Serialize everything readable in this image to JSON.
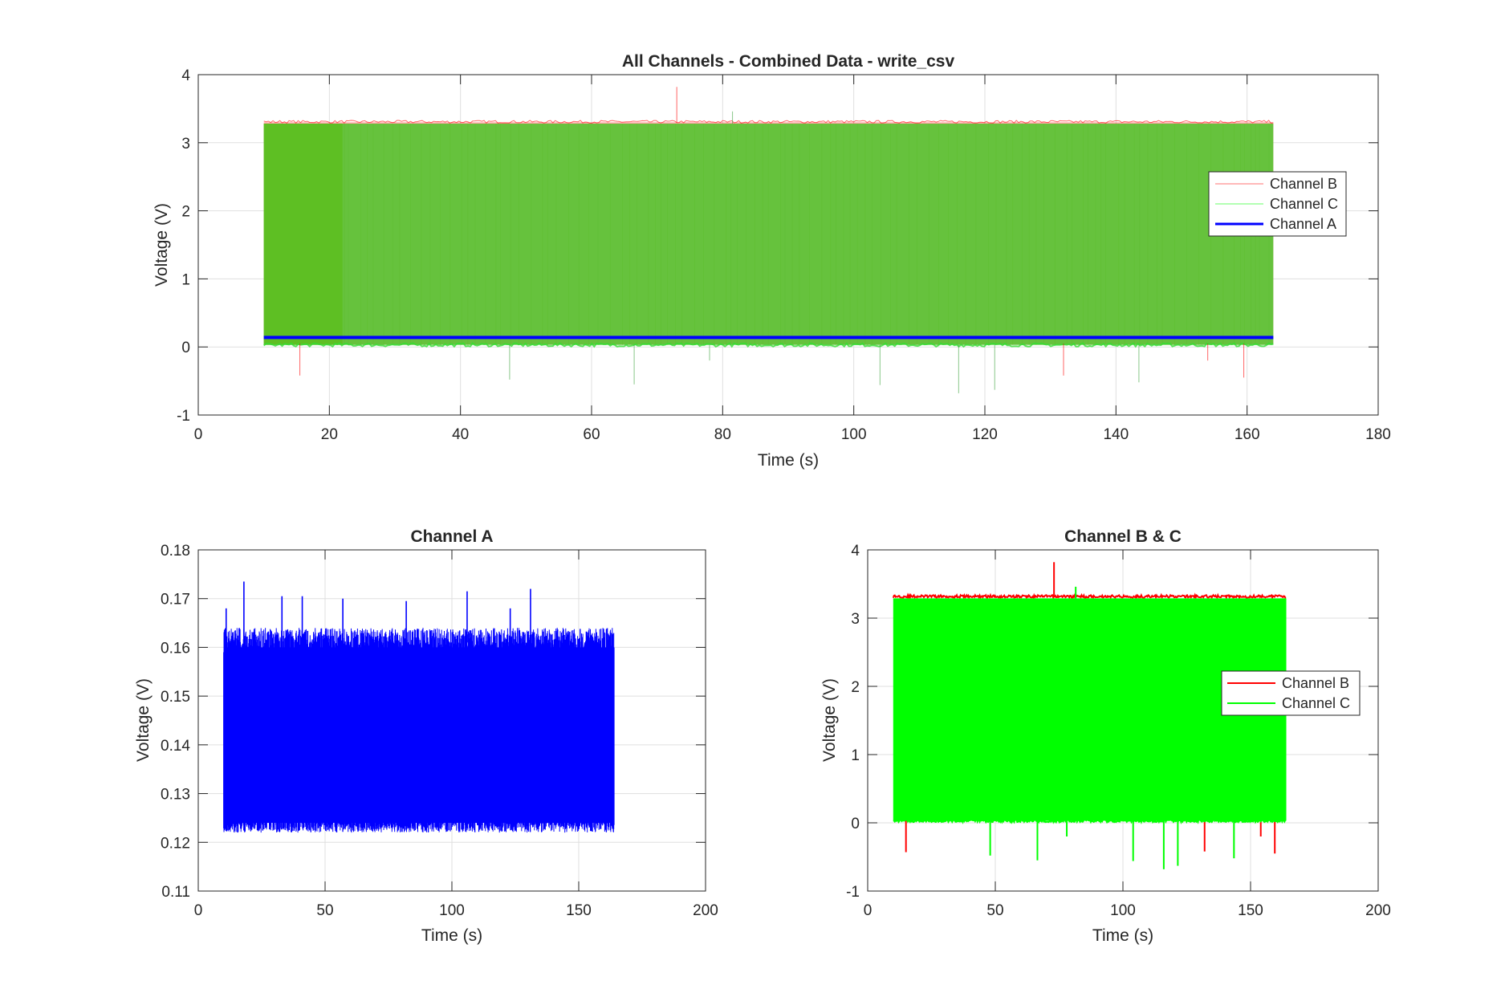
{
  "colors": {
    "channel_a": "#0000ff",
    "channel_b": "#ff0000",
    "channel_c": "#00ff00",
    "channel_c_faded": "#66c23d",
    "grid": "#dfdfdf",
    "axes": "#262626"
  },
  "chart_data": [
    {
      "id": "combined",
      "type": "line",
      "title": "All Channels - Combined Data - write_csv",
      "xlabel": "Time (s)",
      "ylabel": "Voltage (V)",
      "xlim": [
        0,
        180
      ],
      "ylim": [
        -1,
        4
      ],
      "xticks": [
        0,
        20,
        40,
        60,
        80,
        100,
        120,
        140,
        160,
        180
      ],
      "yticks": [
        -1,
        0,
        1,
        2,
        3,
        4
      ],
      "grid": true,
      "legend_position": "right",
      "legend": [
        "Channel B",
        "Channel C",
        "Channel A"
      ],
      "series": [
        {
          "name": "Channel B",
          "t_range": [
            10,
            164
          ],
          "low": 0.05,
          "high": 3.3,
          "spikes": [
            [
              15.5,
              -0.42
            ],
            [
              73,
              3.82
            ],
            [
              132,
              -0.42
            ],
            [
              154,
              -0.2
            ],
            [
              159.5,
              -0.45
            ]
          ]
        },
        {
          "name": "Channel C",
          "t_range": [
            10,
            164
          ],
          "low": 0.03,
          "high": 3.28,
          "spikes": [
            [
              47.5,
              -0.48
            ],
            [
              66.5,
              -0.55
            ],
            [
              78,
              -0.2
            ],
            [
              81.5,
              3.46
            ],
            [
              104,
              -0.56
            ],
            [
              116,
              -0.68
            ],
            [
              121.5,
              -0.63
            ],
            [
              143.5,
              -0.52
            ]
          ]
        },
        {
          "name": "Channel A",
          "t_range": [
            10,
            164
          ],
          "mean": 0.14
        }
      ]
    },
    {
      "id": "channel_a",
      "type": "line",
      "title": "Channel A",
      "xlabel": "Time (s)",
      "ylabel": "Voltage (V)",
      "xlim": [
        0,
        200
      ],
      "ylim": [
        0.11,
        0.18
      ],
      "xticks": [
        0,
        50,
        100,
        150,
        200
      ],
      "yticks": [
        0.11,
        0.12,
        0.13,
        0.14,
        0.15,
        0.16,
        0.17,
        0.18
      ],
      "grid": true,
      "series": [
        {
          "name": "Channel A",
          "t_range": [
            10,
            164
          ],
          "low": 0.121,
          "high": 0.163,
          "spikes": [
            [
              11,
              0.168
            ],
            [
              18,
              0.1735
            ],
            [
              33,
              0.1705
            ],
            [
              41,
              0.1705
            ],
            [
              57,
              0.17
            ],
            [
              82,
              0.1695
            ],
            [
              106,
              0.1715
            ],
            [
              123,
              0.168
            ],
            [
              131,
              0.172
            ]
          ]
        }
      ]
    },
    {
      "id": "channel_bc",
      "type": "line",
      "title": "Channel B & C",
      "xlabel": "Time (s)",
      "ylabel": "Voltage (V)",
      "xlim": [
        0,
        200
      ],
      "ylim": [
        -1,
        4
      ],
      "xticks": [
        0,
        50,
        100,
        150,
        200
      ],
      "yticks": [
        -1,
        0,
        1,
        2,
        3,
        4
      ],
      "grid": true,
      "legend_position": "right",
      "legend": [
        "Channel B",
        "Channel C"
      ],
      "series": [
        {
          "name": "Channel B",
          "t_range": [
            10,
            164
          ],
          "low": 0.05,
          "high": 3.31,
          "spikes": [
            [
              15,
              -0.43
            ],
            [
              73,
              3.82
            ],
            [
              132,
              -0.42
            ],
            [
              154,
              -0.2
            ],
            [
              159.5,
              -0.45
            ]
          ]
        },
        {
          "name": "Channel C",
          "t_range": [
            10,
            164
          ],
          "low": 0.03,
          "high": 3.29,
          "spikes": [
            [
              48,
              -0.48
            ],
            [
              66.5,
              -0.55
            ],
            [
              73,
              3.2
            ],
            [
              78,
              -0.2
            ],
            [
              81.5,
              3.46
            ],
            [
              104,
              -0.56
            ],
            [
              116,
              -0.68
            ],
            [
              121.5,
              -0.63
            ],
            [
              143.5,
              -0.52
            ]
          ]
        }
      ]
    }
  ]
}
